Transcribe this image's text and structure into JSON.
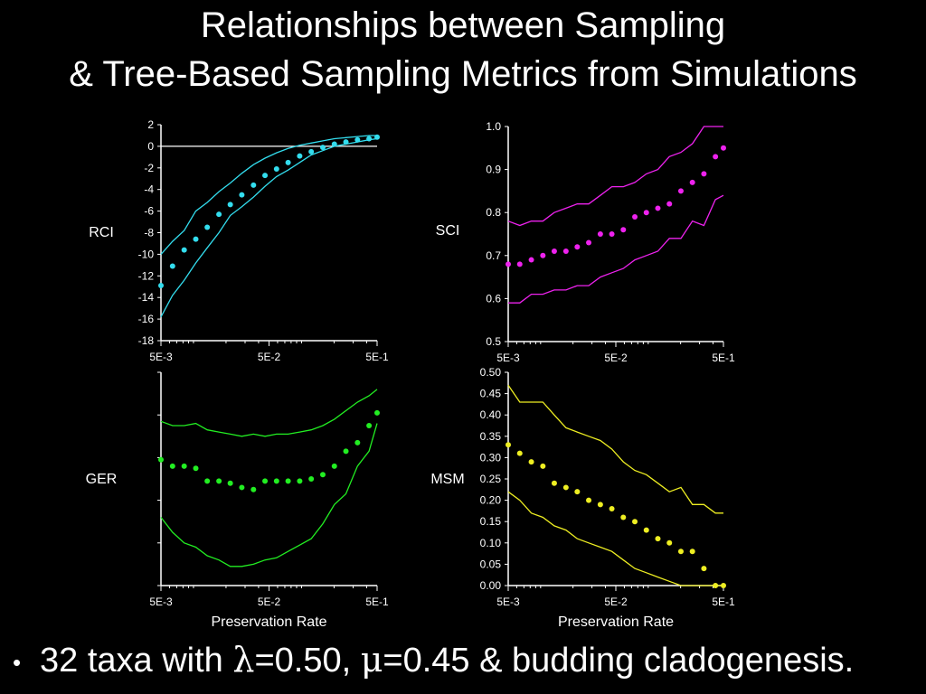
{
  "title": {
    "line1": "Relationships between Sampling",
    "line2": "& Tree-Based Sampling Metrics from Simulations"
  },
  "bullet": {
    "symbol": "•",
    "prefix": "32 taxa with ",
    "lambda": "λ",
    "lambda_eq": "=0.50, ",
    "mu": "μ",
    "suffix": "=0.45 & budding cladogenesis."
  },
  "colors": {
    "background": "#000000",
    "text": "#ffffff",
    "axis": "#ffffff",
    "rci": "#33ddee",
    "sci": "#ee22ee",
    "ger": "#22ee22",
    "msm": "#eeee22"
  },
  "chart_data": [
    {
      "type": "scatter",
      "ylabel": "RCI",
      "xlabel": "",
      "xscale": "log",
      "xlim": [
        0.005,
        0.5
      ],
      "ylim": [
        -18,
        2
      ],
      "yticks": [
        "2",
        "0",
        "-2",
        "-4",
        "-6",
        "-8",
        "-10",
        "-12",
        "-14",
        "-16",
        "-18"
      ],
      "xticks": [
        "5E-3",
        "5E-2",
        "5E-1"
      ],
      "reference_line": 0,
      "x": [
        0.005,
        0.0064,
        0.0082,
        0.0105,
        0.0134,
        0.0172,
        0.0219,
        0.028,
        0.0359,
        0.0459,
        0.0587,
        0.0751,
        0.0961,
        0.1229,
        0.1573,
        0.2012,
        0.2574,
        0.3293,
        0.4213,
        0.5
      ],
      "mean": [
        -12.9,
        -11.1,
        -9.6,
        -8.6,
        -7.5,
        -6.3,
        -5.4,
        -4.5,
        -3.6,
        -2.7,
        -2.1,
        -1.5,
        -0.9,
        -0.5,
        -0.1,
        0.2,
        0.4,
        0.6,
        0.7,
        0.85
      ],
      "upper": [
        -10.0,
        -8.8,
        -7.8,
        -6.0,
        -5.2,
        -4.2,
        -3.4,
        -2.5,
        -1.7,
        -1.1,
        -0.6,
        -0.2,
        0.1,
        0.3,
        0.5,
        0.7,
        0.8,
        0.9,
        1.0,
        1.0
      ],
      "lower": [
        -15.8,
        -13.8,
        -12.4,
        -10.8,
        -9.4,
        -8.0,
        -6.4,
        -5.6,
        -4.7,
        -3.7,
        -2.8,
        -2.2,
        -1.5,
        -0.8,
        -0.4,
        0.0,
        0.2,
        0.4,
        0.6,
        0.7
      ]
    },
    {
      "type": "scatter",
      "ylabel": "SCI",
      "xlabel": "",
      "xscale": "log",
      "xlim": [
        0.005,
        0.5
      ],
      "ylim": [
        0.5,
        1.0
      ],
      "yticks": [
        "1.0",
        "0.9",
        "0.8",
        "0.7",
        "0.6",
        "0.5"
      ],
      "xticks": [
        "5E-3",
        "5E-2",
        "5E-1"
      ],
      "x": [
        0.005,
        0.0064,
        0.0082,
        0.0105,
        0.0134,
        0.0172,
        0.0219,
        0.028,
        0.0359,
        0.0459,
        0.0587,
        0.0751,
        0.0961,
        0.1229,
        0.1573,
        0.2012,
        0.2574,
        0.3293,
        0.4213,
        0.5
      ],
      "mean": [
        0.68,
        0.68,
        0.69,
        0.7,
        0.71,
        0.71,
        0.72,
        0.73,
        0.75,
        0.75,
        0.76,
        0.79,
        0.8,
        0.81,
        0.82,
        0.85,
        0.87,
        0.89,
        0.93,
        0.95
      ],
      "upper": [
        0.78,
        0.77,
        0.78,
        0.78,
        0.8,
        0.81,
        0.82,
        0.82,
        0.84,
        0.86,
        0.86,
        0.87,
        0.89,
        0.9,
        0.93,
        0.94,
        0.96,
        1.0,
        1.0,
        1.0
      ],
      "lower": [
        0.59,
        0.59,
        0.61,
        0.61,
        0.62,
        0.62,
        0.63,
        0.63,
        0.65,
        0.66,
        0.67,
        0.69,
        0.7,
        0.71,
        0.74,
        0.74,
        0.78,
        0.77,
        0.83,
        0.84
      ]
    },
    {
      "type": "scatter",
      "ylabel": "GER",
      "xlabel": "Preservation Rate",
      "xscale": "log",
      "xlim": [
        0.005,
        0.5
      ],
      "ylim": [
        0,
        1
      ],
      "yticks": [],
      "xticks": [
        "5E-3",
        "5E-2",
        "5E-1"
      ],
      "x": [
        0.005,
        0.0064,
        0.0082,
        0.0105,
        0.0134,
        0.0172,
        0.0219,
        0.028,
        0.0359,
        0.0459,
        0.0587,
        0.0751,
        0.0961,
        0.1229,
        0.1573,
        0.2012,
        0.2574,
        0.3293,
        0.4213,
        0.5
      ],
      "mean": [
        0.59,
        0.56,
        0.56,
        0.55,
        0.49,
        0.49,
        0.48,
        0.46,
        0.45,
        0.49,
        0.49,
        0.49,
        0.49,
        0.5,
        0.52,
        0.56,
        0.63,
        0.67,
        0.75,
        0.81
      ],
      "upper": [
        0.77,
        0.75,
        0.75,
        0.76,
        0.73,
        0.72,
        0.71,
        0.7,
        0.71,
        0.7,
        0.71,
        0.71,
        0.72,
        0.73,
        0.75,
        0.78,
        0.82,
        0.86,
        0.89,
        0.92
      ],
      "lower": [
        0.32,
        0.25,
        0.2,
        0.18,
        0.14,
        0.12,
        0.09,
        0.09,
        0.1,
        0.12,
        0.13,
        0.16,
        0.19,
        0.22,
        0.29,
        0.38,
        0.43,
        0.56,
        0.63,
        0.76
      ]
    },
    {
      "type": "scatter",
      "ylabel": "MSM",
      "xlabel": "Preservation Rate",
      "xscale": "log",
      "xlim": [
        0.005,
        0.5
      ],
      "ylim": [
        0.0,
        0.5
      ],
      "yticks": [
        "0.50",
        "0.45",
        "0.40",
        "0.35",
        "0.30",
        "0.25",
        "0.20",
        "0.15",
        "0.10",
        "0.05",
        "0.00"
      ],
      "xticks": [
        "5E-3",
        "5E-2",
        "5E-1"
      ],
      "x": [
        0.005,
        0.0064,
        0.0082,
        0.0105,
        0.0134,
        0.0172,
        0.0219,
        0.028,
        0.0359,
        0.0459,
        0.0587,
        0.0751,
        0.0961,
        0.1229,
        0.1573,
        0.2012,
        0.2574,
        0.3293,
        0.4213,
        0.5
      ],
      "mean": [
        0.33,
        0.31,
        0.29,
        0.28,
        0.24,
        0.23,
        0.22,
        0.2,
        0.19,
        0.18,
        0.16,
        0.15,
        0.13,
        0.11,
        0.1,
        0.08,
        0.08,
        0.04,
        0.0,
        0.0
      ],
      "upper": [
        0.47,
        0.43,
        0.43,
        0.43,
        0.4,
        0.37,
        0.36,
        0.35,
        0.34,
        0.32,
        0.29,
        0.27,
        0.26,
        0.24,
        0.22,
        0.23,
        0.19,
        0.19,
        0.17,
        0.17
      ],
      "lower": [
        0.22,
        0.2,
        0.17,
        0.16,
        0.14,
        0.13,
        0.11,
        0.1,
        0.09,
        0.08,
        0.06,
        0.04,
        0.03,
        0.02,
        0.01,
        0.0,
        0.0,
        0.0,
        0.0,
        0.0
      ]
    }
  ]
}
